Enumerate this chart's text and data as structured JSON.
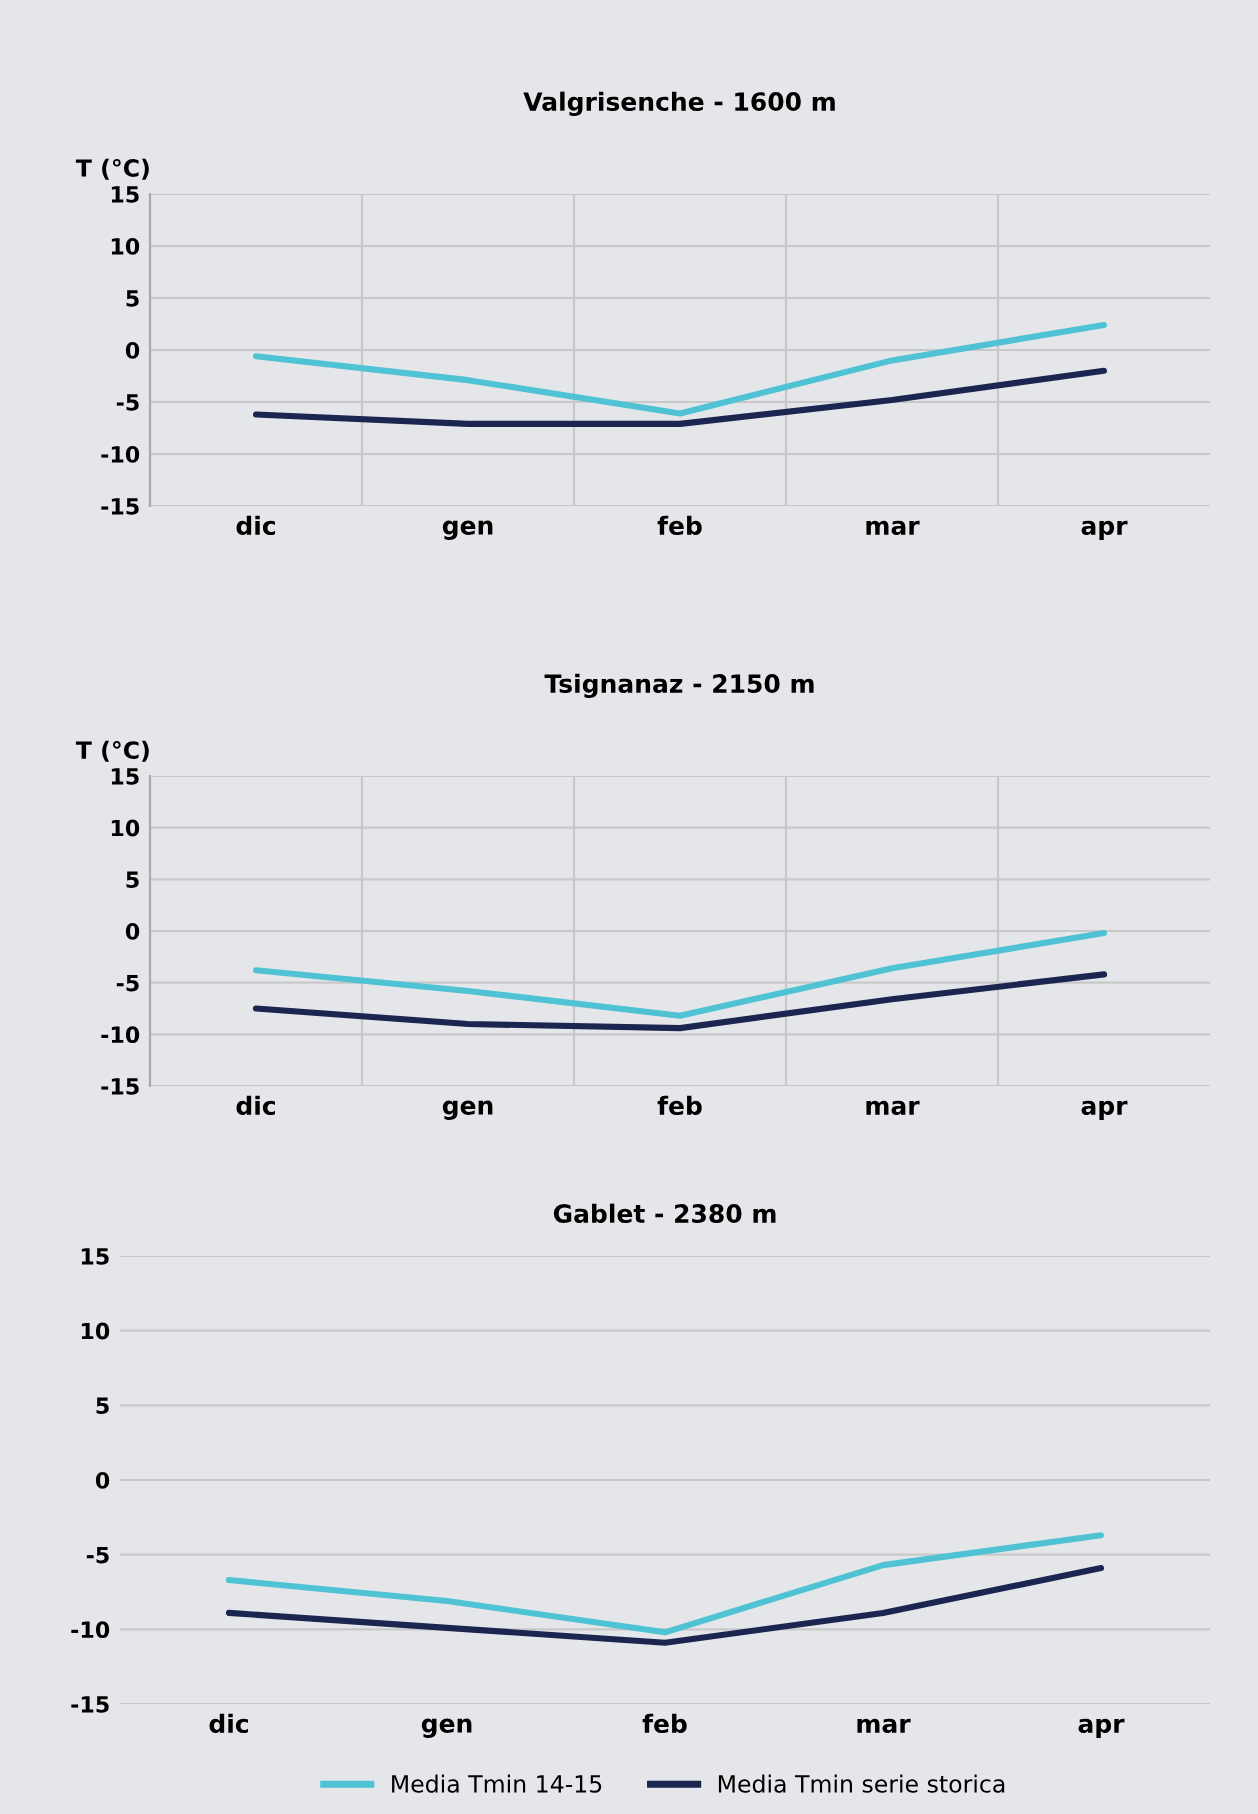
{
  "chart_data": [
    {
      "type": "line",
      "title": "Valgrisenche - 1600 m",
      "ylabel": "T (°C)",
      "categories": [
        "dic",
        "gen",
        "feb",
        "mar",
        "apr"
      ],
      "ylim": [
        -15,
        15
      ],
      "yticks": [
        -15,
        -10,
        -5,
        0,
        5,
        10,
        15
      ],
      "grid": true,
      "legend": false,
      "series": [
        {
          "color": "#4fc3d3",
          "values": [
            -0.6,
            -2.9,
            -6.1,
            -1,
            2.4
          ]
        },
        {
          "color": "#1a2550",
          "values": [
            -6.2,
            -7.1,
            -7.1,
            -4.8,
            -2
          ]
        }
      ]
    },
    {
      "type": "line",
      "title": "Tsignanaz - 2150 m",
      "ylabel": "T (°C)",
      "categories": [
        "dic",
        "gen",
        "feb",
        "mar",
        "apr"
      ],
      "ylim": [
        -15,
        15
      ],
      "yticks": [
        -15,
        -10,
        -5,
        0,
        5,
        10,
        15
      ],
      "grid": true,
      "legend": false,
      "series": [
        {
          "color": "#4fc3d3",
          "values": [
            -3.8,
            -5.8,
            -8.2,
            -3.6,
            -0.2
          ]
        },
        {
          "color": "#1a2550",
          "values": [
            -7.5,
            -9,
            -9.4,
            -6.6,
            -4.2
          ]
        }
      ]
    },
    {
      "type": "line",
      "title": "Gablet - 2380 m",
      "categories": [
        "dic",
        "gen",
        "feb",
        "mar",
        "apr"
      ],
      "ylim": [
        -15,
        15
      ],
      "yticks": [
        -15,
        -10,
        -5,
        0,
        5,
        10,
        15
      ],
      "grid": "y",
      "legend": "bottom",
      "series": [
        {
          "name": "Media Tmin 14-15",
          "color": "#4fc3d3",
          "values": [
            -6.7,
            -8.1,
            -10.2,
            -5.7,
            -3.7
          ]
        },
        {
          "name": "Media Tmin serie storica",
          "color": "#1a2550",
          "values": [
            -8.9,
            -9.9,
            -10.9,
            -8.9,
            -5.9
          ]
        }
      ]
    }
  ]
}
